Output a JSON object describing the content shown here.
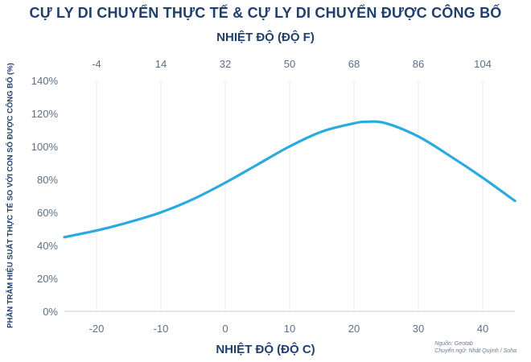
{
  "title": "CỰ LY DI CHUYỂN THỰC TẾ & CỰ LY DI CHUYỂN ĐƯỢC CÔNG BỐ",
  "source": {
    "line1": "Nguồn: Geotab",
    "line2": "Chuyển ngữ: Nhật Quỳnh / Soha"
  },
  "chart_data": {
    "type": "line",
    "title": "CỰ LY DI CHUYỂN THỰC TẾ & CỰ LY DI CHUYỂN ĐƯỢC CÔNG BỐ",
    "xlabel": "NHIỆT ĐỘ (ĐỘ C)",
    "x2label": "NHIỆT ĐỘ (ĐỘ F)",
    "ylabel": "PHẦN TRĂM HIỆU SUẤT THỰC TẾ SO VỚI CON SỐ ĐƯỢC CÔNG BỐ (%)",
    "xlim": [
      -25,
      45
    ],
    "ylim": [
      0,
      140
    ],
    "x_ticks": [
      -20,
      -10,
      0,
      10,
      20,
      30,
      40
    ],
    "x_tick_labels": [
      "-20",
      "-10",
      "0",
      "10",
      "20",
      "30",
      "40"
    ],
    "x2_ticks": [
      -4,
      14,
      32,
      50,
      68,
      86,
      104
    ],
    "x2_tick_labels": [
      "-4",
      "14",
      "32",
      "50",
      "68",
      "86",
      "104"
    ],
    "y_ticks": [
      0,
      20,
      40,
      60,
      80,
      100,
      120,
      140
    ],
    "y_tick_labels": [
      "0%",
      "20%",
      "40%",
      "60%",
      "80%",
      "100%",
      "120%",
      "140%"
    ],
    "grid": "vertical",
    "line_color": "#29abe2",
    "series": [
      {
        "x": [
          -25,
          -20,
          -15,
          -10,
          -5,
          0,
          5,
          10,
          15,
          20,
          22,
          25,
          30,
          35,
          40,
          45
        ],
        "values": [
          45,
          49,
          54,
          60,
          68,
          78,
          89,
          100,
          109,
          114,
          115,
          114,
          106,
          94,
          81,
          67
        ]
      }
    ]
  }
}
